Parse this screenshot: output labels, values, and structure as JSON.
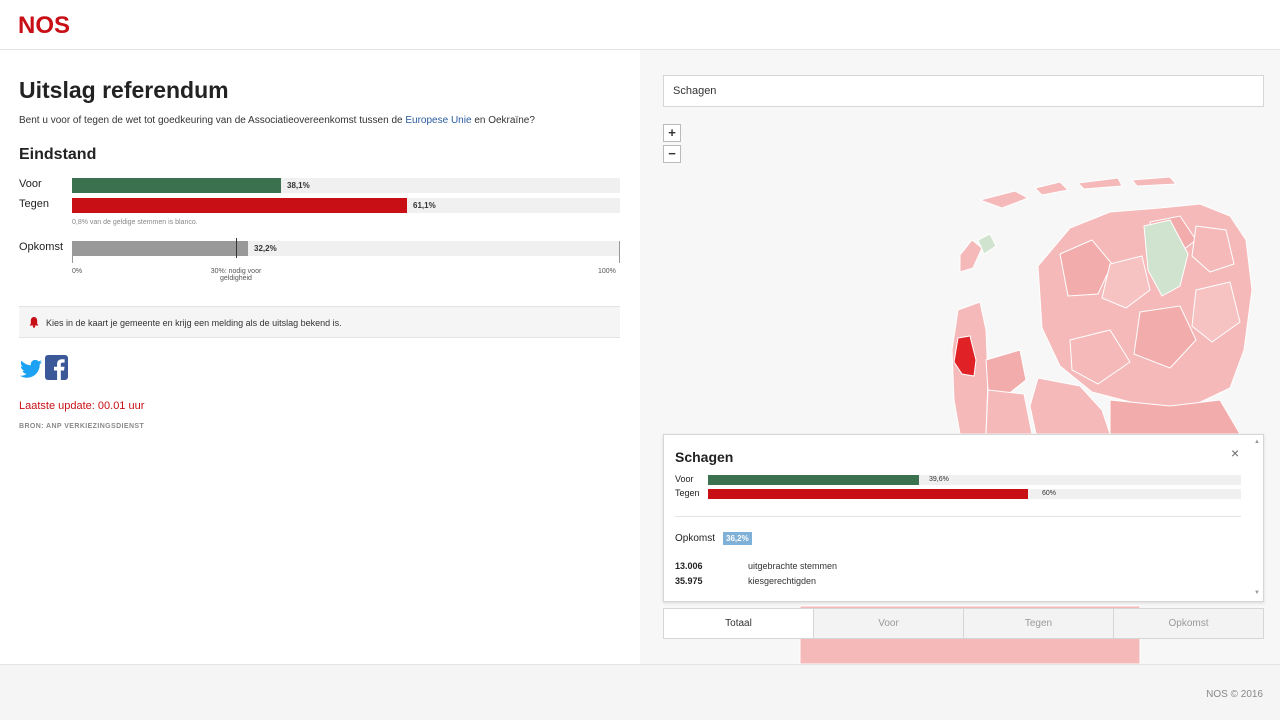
{
  "header": {
    "logo_text": "NOS"
  },
  "main": {
    "title": "Uitslag referendum",
    "question_part1": "Bent u voor of tegen de wet tot goedkeuring van de Associatieovereenkomst tussen de",
    "question_link": "Europese Unie",
    "question_part2": "en Oekraïne?",
    "section_title": "Eindstand",
    "results": [
      {
        "label": "Voor",
        "value_label": "38,1%",
        "value": 38.1,
        "color": "#3c7150"
      },
      {
        "label": "Tegen",
        "value_label": "61,1%",
        "value": 61.1,
        "color": "#c80f16"
      }
    ],
    "blank_note": "0,8% van de geldige stemmen is blanco.",
    "turnout": {
      "label": "Opkomst",
      "value_label": "32,2%",
      "value": 32.2,
      "color": "#999999",
      "threshold": 30
    },
    "axis": {
      "min_label": "0%",
      "threshold_label_line1": "30%: nodig voor",
      "threshold_label_line2": "geldigheid",
      "max_label": "100%"
    },
    "notice": "Kies in de kaart je gemeente en krijg een melding als de uitslag bekend is.",
    "social": {
      "twitter": "twitter-icon",
      "facebook": "facebook-icon",
      "twitter_color": "#1da1f2",
      "facebook_color": "#3b5998"
    },
    "last_update": "Laatste update: 00.01 uur",
    "source": "BRON: ANP VERKIEZINGSDIENST"
  },
  "map": {
    "search_value": "Schagen",
    "zoom_in": "+",
    "zoom_out": "−",
    "popup": {
      "title": "Schagen",
      "close": "×",
      "results": [
        {
          "label": "Voor",
          "value_label": "39,6%",
          "value": 39.6,
          "color": "#3c7150"
        },
        {
          "label": "Tegen",
          "value_label": "60%",
          "value": 60,
          "color": "#c80f16"
        }
      ],
      "turnout_label": "Opkomst",
      "turnout_value": "36,2%",
      "stats": [
        {
          "number": "13.006",
          "label": "uitgebrachte stemmen"
        },
        {
          "number": "35.975",
          "label": "kiesgerechtigden"
        }
      ]
    },
    "tabs": [
      {
        "label": "Totaal",
        "active": true
      },
      {
        "label": "Voor",
        "active": false
      },
      {
        "label": "Tegen",
        "active": false
      },
      {
        "label": "Opkomst",
        "active": false
      }
    ]
  },
  "footer": {
    "copyright": "NOS © 2016"
  }
}
